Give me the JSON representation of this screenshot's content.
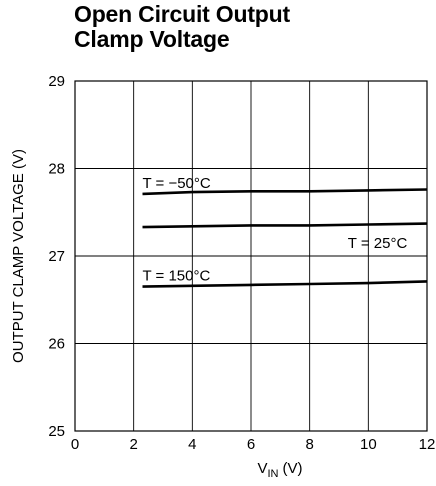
{
  "chart_data": {
    "type": "line",
    "title_lines": [
      "Open Circuit Output",
      "Clamp Voltage"
    ],
    "xlabel": "V",
    "xlabel_sub": "IN",
    "xlabel_unit": "(V)",
    "ylabel": "OUTPUT CLAMP VOLTAGE (V)",
    "xlim": [
      0,
      12
    ],
    "ylim": [
      25,
      29
    ],
    "x_ticks": [
      0,
      2,
      4,
      6,
      8,
      10,
      12
    ],
    "y_ticks": [
      25,
      26,
      27,
      28,
      29
    ],
    "grid": true,
    "series": [
      {
        "name": "T = −50°C",
        "x": [
          2.3,
          4,
          6,
          8,
          10,
          12
        ],
        "y": [
          27.71,
          27.73,
          27.74,
          27.74,
          27.75,
          27.76
        ]
      },
      {
        "name": "T = 25°C",
        "x": [
          2.3,
          4,
          6,
          8,
          10,
          12
        ],
        "y": [
          27.33,
          27.34,
          27.35,
          27.35,
          27.36,
          27.37
        ]
      },
      {
        "name": "T = 150°C",
        "x": [
          2.3,
          4,
          6,
          8,
          10,
          12
        ],
        "y": [
          26.65,
          26.66,
          26.67,
          26.68,
          26.69,
          26.71
        ]
      }
    ],
    "annotations": [
      {
        "text": "T = −50°C",
        "x": 2.3,
        "y": 27.78
      },
      {
        "text": "T = 25°C",
        "x": 9.3,
        "y": 27.09
      },
      {
        "text": "T = 150°C",
        "x": 2.3,
        "y": 26.72
      }
    ]
  }
}
